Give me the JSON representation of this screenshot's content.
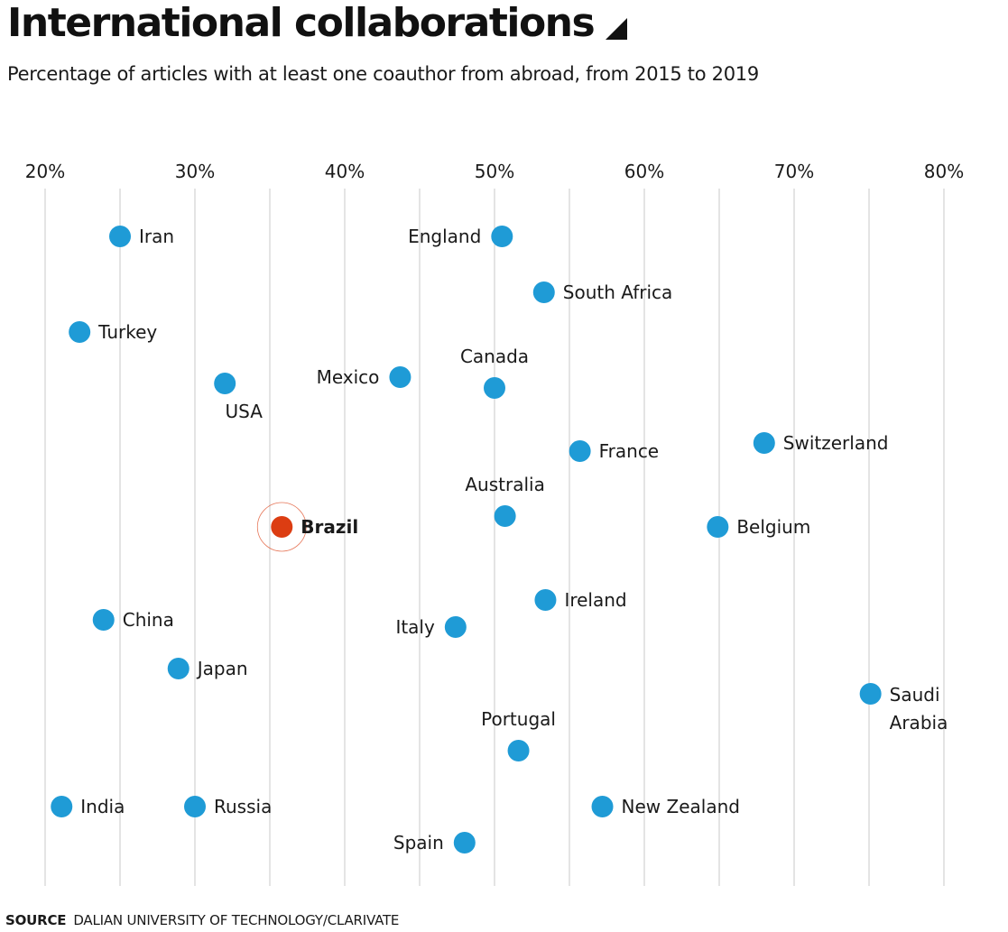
{
  "header": {
    "title": "International collaborations",
    "subtitle": "Percentage of articles with at least one coauthor from abroad, from 2015 to 2019"
  },
  "footer": {
    "source_label": "SOURCE",
    "source_text": "DALIAN UNIVERSITY OF TECHNOLOGY/CLARIVATE"
  },
  "colors": {
    "default_point": "#1f9bd6",
    "highlight_point": "#dc3d12",
    "highlight_ring": "#dc3d12",
    "gridline": "#c8c8c8"
  },
  "chart_data": {
    "type": "scatter",
    "title": "International collaborations",
    "subtitle": "Percentage of articles with at least one coauthor from abroad, from 2015 to 2019",
    "x_axis": {
      "label": "",
      "ticks": [
        20,
        30,
        40,
        50,
        60,
        70,
        80
      ],
      "tick_labels": [
        "20%",
        "30%",
        "40%",
        "50%",
        "60%",
        "70%",
        "80%"
      ],
      "range": [
        20,
        80
      ],
      "position": "top"
    },
    "grid": true,
    "points": [
      {
        "country": "Iran",
        "value": 25.0,
        "label_side": "right"
      },
      {
        "country": "England",
        "value": 50.5,
        "label_side": "left"
      },
      {
        "country": "South Africa",
        "value": 53.3,
        "label_side": "right"
      },
      {
        "country": "Turkey",
        "value": 22.3,
        "label_side": "right"
      },
      {
        "country": "Mexico",
        "value": 43.7,
        "label_side": "left"
      },
      {
        "country": "Canada",
        "value": 50.0,
        "label_side": "above"
      },
      {
        "country": "USA",
        "value": 32.0,
        "label_side": "below"
      },
      {
        "country": "Switzerland",
        "value": 68.0,
        "label_side": "right"
      },
      {
        "country": "France",
        "value": 55.7,
        "label_side": "right"
      },
      {
        "country": "Australia",
        "value": 50.7,
        "label_side": "above"
      },
      {
        "country": "Brazil",
        "value": 35.8,
        "label_side": "right",
        "highlight": true
      },
      {
        "country": "Belgium",
        "value": 64.9,
        "label_side": "right"
      },
      {
        "country": "Ireland",
        "value": 53.4,
        "label_side": "right"
      },
      {
        "country": "China",
        "value": 23.9,
        "label_side": "right"
      },
      {
        "country": "Italy",
        "value": 47.4,
        "label_side": "left"
      },
      {
        "country": "Japan",
        "value": 28.9,
        "label_side": "right"
      },
      {
        "country": "Saudi Arabia",
        "value": 75.1,
        "label_side": "right",
        "label_lines": [
          "Saudi",
          "Arabia"
        ]
      },
      {
        "country": "Portugal",
        "value": 51.6,
        "label_side": "above"
      },
      {
        "country": "India",
        "value": 21.1,
        "label_side": "right"
      },
      {
        "country": "Russia",
        "value": 30.0,
        "label_side": "right"
      },
      {
        "country": "New Zealand",
        "value": 57.2,
        "label_side": "right"
      },
      {
        "country": "Spain",
        "value": 48.0,
        "label_side": "left"
      }
    ]
  }
}
